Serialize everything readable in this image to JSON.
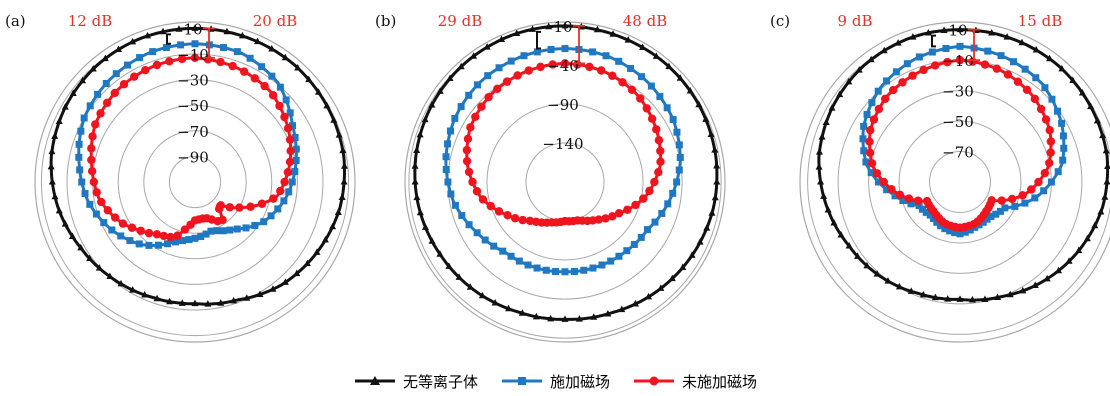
{
  "chart_data": {
    "type": "line",
    "colors": {
      "black": "#111111",
      "blue": "#1f78c1",
      "red": "#f0141e",
      "grid": "#a8a8a8",
      "annotation": "#e8302a"
    },
    "legend": [
      {
        "label": "无等离子体",
        "color": "#111111",
        "marker": "triangle"
      },
      {
        "label": "施加磁场",
        "color": "#1f78c1",
        "marker": "square"
      },
      {
        "label": "未施加磁场",
        "color": "#f0141e",
        "marker": "circle"
      }
    ],
    "panels": [
      {
        "label": "(a)",
        "annotation_left": "12 dB",
        "annotation_right": "20 dB",
        "rlim": [
          -110,
          15
        ],
        "ticks": [
          {
            "value": 10,
            "text": "10"
          },
          {
            "value": -10,
            "text": "−10"
          },
          {
            "value": -30,
            "text": "−30"
          },
          {
            "value": -50,
            "text": "−50"
          },
          {
            "value": -70,
            "text": "−70"
          },
          {
            "value": -90,
            "text": "−90"
          }
        ],
        "ring_values": [
          10,
          -10,
          -30,
          -50,
          -70,
          -90
        ],
        "series": [
          {
            "key": "black",
            "angles": [
              0,
              20,
              40,
              60,
              80,
              100,
              120,
              140,
              160,
              180,
              200,
              220,
              240,
              260,
              280,
              300,
              320,
              340,
              360
            ],
            "values": [
              10,
              10,
              10,
              9,
              8,
              5,
              0,
              -5,
              -12,
              -15,
              -14,
              -11,
              -7,
              -1,
              4,
              7,
              9,
              10,
              10
            ]
          },
          {
            "key": "blue",
            "angles": [
              0,
              20,
              40,
              60,
              80,
              100,
              120,
              140,
              160,
              170,
              180,
              190,
              200,
              220,
              240,
              260,
              280,
              300,
              320,
              340,
              360
            ],
            "values": [
              -2,
              -3,
              -9,
              -22,
              -30,
              -38,
              -48,
              -62,
              -70,
              -68,
              -66,
              -64,
              -60,
              -46,
              -35,
              -25,
              -18,
              -10,
              -6,
              -3,
              -2
            ]
          },
          {
            "key": "red",
            "angles": [
              0,
              20,
              40,
              60,
              80,
              100,
              120,
              135,
              145,
              160,
              170,
              180,
              190,
              200,
              215,
              230,
              240,
              260,
              280,
              300,
              320,
              340,
              360
            ],
            "values": [
              -13,
              -15,
              -18,
              -26,
              -35,
              -45,
              -70,
              -86,
              -72,
              -80,
              -81,
              -80,
              -74,
              -64,
              -60,
              -52,
              -45,
              -34,
              -28,
              -20,
              -16,
              -14,
              -13
            ]
          }
        ]
      },
      {
        "label": "(b)",
        "annotation_left": "29 dB",
        "annotation_right": "48 dB",
        "rlim": [
          -190,
          15
        ],
        "ticks": [
          {
            "value": 10,
            "text": "10"
          },
          {
            "value": -40,
            "text": "−40"
          },
          {
            "value": -90,
            "text": "−90"
          },
          {
            "value": -140,
            "text": "−140"
          }
        ],
        "ring_values": [
          10,
          -40,
          -90,
          -140
        ],
        "series": [
          {
            "key": "black",
            "angles": [
              0,
              20,
              40,
              60,
              80,
              100,
              120,
              140,
              160,
              180,
              200,
              220,
              240,
              260,
              280,
              300,
              320,
              340,
              360
            ],
            "values": [
              10,
              9,
              9,
              8,
              6,
              3,
              -2,
              -7,
              -12,
              -14,
              -13,
              -9,
              -5,
              0,
              4,
              7,
              9,
              10,
              10
            ]
          },
          {
            "key": "blue",
            "angles": [
              0,
              20,
              40,
              60,
              80,
              100,
              120,
              140,
              160,
              180,
              200,
              220,
              240,
              260,
              280,
              300,
              320,
              340,
              360
            ],
            "values": [
              -19,
              -20,
              -24,
              -30,
              -40,
              -54,
              -68,
              -72,
              -74,
              -75,
              -74,
              -72,
              -60,
              -45,
              -35,
              -27,
              -22,
              -20,
              -19
            ]
          },
          {
            "key": "red",
            "angles": [
              0,
              20,
              40,
              60,
              80,
              100,
              120,
              140,
              160,
              180,
              200,
              220,
              240,
              260,
              280,
              300,
              320,
              340,
              360
            ],
            "values": [
              -38,
              -40,
              -45,
              -55,
              -66,
              -85,
              -110,
              -127,
              -138,
              -140,
              -135,
              -125,
              -105,
              -80,
              -63,
              -50,
              -43,
              -40,
              -38
            ]
          }
        ]
      },
      {
        "label": "(c)",
        "annotation_left": "9 dB",
        "annotation_right": "15 dB",
        "rlim": [
          -90,
          15
        ],
        "ticks": [
          {
            "value": 10,
            "text": "10"
          },
          {
            "value": -10,
            "text": "−10"
          },
          {
            "value": -30,
            "text": "−30"
          },
          {
            "value": -50,
            "text": "−50"
          },
          {
            "value": -70,
            "text": "−70"
          }
        ],
        "ring_values": [
          10,
          -10,
          -30,
          -50,
          -70
        ],
        "series": [
          {
            "key": "black",
            "angles": [
              0,
              20,
              40,
              60,
              80,
              100,
              120,
              140,
              160,
              180,
              200,
              220,
              240,
              260,
              280,
              300,
              320,
              340,
              360
            ],
            "values": [
              10,
              10,
              10,
              9,
              8,
              5,
              0,
              -5,
              -10,
              -13,
              -12,
              -9,
              -6,
              -1,
              4,
              7,
              9,
              10,
              10
            ]
          },
          {
            "key": "blue",
            "angles": [
              0,
              20,
              40,
              60,
              80,
              100,
              120,
              140,
              160,
              180,
              200,
              220,
              240,
              260,
              280,
              300,
              320,
              340,
              360
            ],
            "values": [
              -1,
              -3,
              -6,
              -13,
              -22,
              -38,
              -56,
              -60,
              -59,
              -56,
              -58,
              -61,
              -59,
              -45,
              -28,
              -17,
              -9,
              -4,
              -1
            ]
          },
          {
            "key": "red",
            "angles": [
              0,
              20,
              40,
              60,
              80,
              100,
              120,
              140,
              160,
              180,
              200,
              220,
              240,
              260,
              280,
              300,
              320,
              340,
              360
            ],
            "values": [
              -10,
              -12,
              -16,
              -22,
              -31,
              -46,
              -66,
              -64,
              -61,
              -60,
              -61,
              -64,
              -65,
              -48,
              -32,
              -22,
              -16,
              -13,
              -10
            ]
          }
        ]
      }
    ]
  }
}
